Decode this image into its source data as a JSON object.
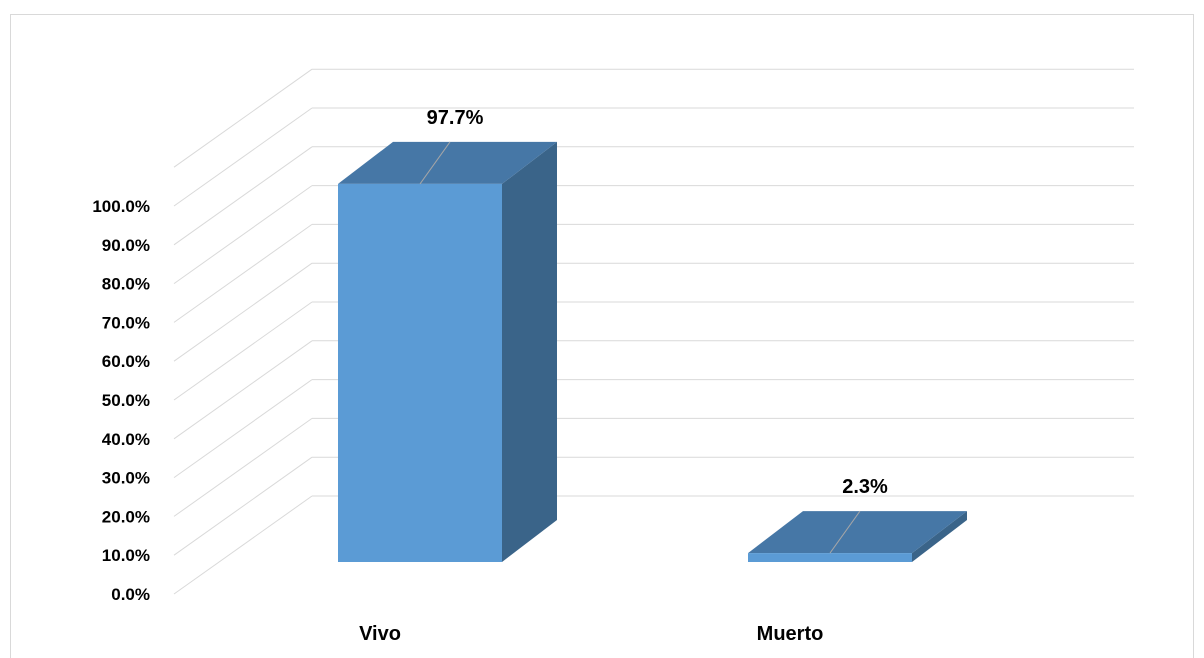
{
  "chart_data": {
    "type": "bar",
    "style": "3d-column",
    "categories": [
      "Vivo",
      "Muerto"
    ],
    "values": [
      97.7,
      2.3
    ],
    "data_labels": [
      "97.7%",
      "2.3%"
    ],
    "y_ticks": [
      "0.0%",
      "10.0%",
      "20.0%",
      "30.0%",
      "40.0%",
      "50.0%",
      "60.0%",
      "70.0%",
      "80.0%",
      "90.0%",
      "100.0%"
    ],
    "ylim": [
      0,
      100
    ],
    "grid": true,
    "legend": "none",
    "title": "",
    "xlabel": "",
    "ylabel": "",
    "colors": {
      "bar_front": "#5b9bd5",
      "bar_top": "#4677a6",
      "bar_side": "#3a6489",
      "gridline": "#d9d9d9"
    }
  }
}
